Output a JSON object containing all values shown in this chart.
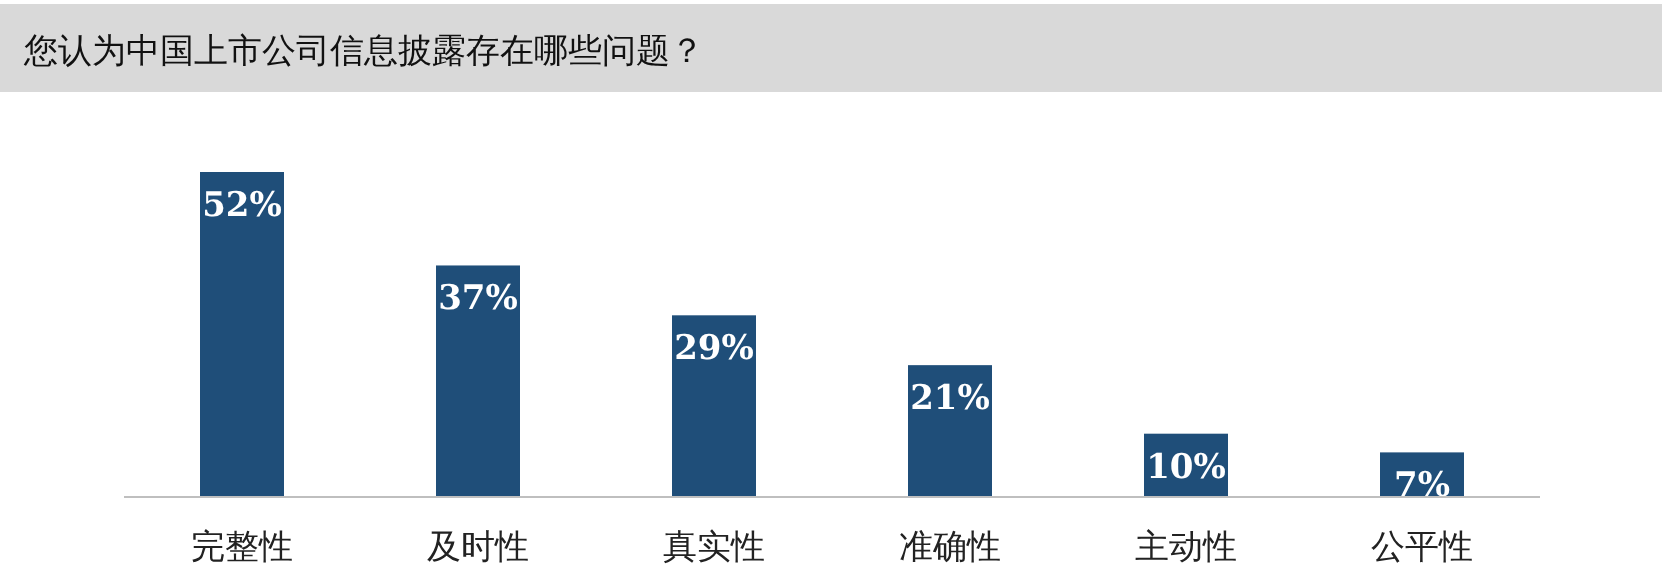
{
  "chart_data": {
    "type": "bar",
    "title": "您认为中国上市公司信息披露存在哪些问题？",
    "categories": [
      "完整性",
      "及时性",
      "真实性",
      "准确性",
      "主动性",
      "公平性"
    ],
    "values": [
      52,
      37,
      29,
      21,
      10,
      7
    ],
    "value_labels": [
      "52%",
      "37%",
      "29%",
      "21%",
      "10%",
      "7%"
    ],
    "color": "#1f4e79"
  }
}
